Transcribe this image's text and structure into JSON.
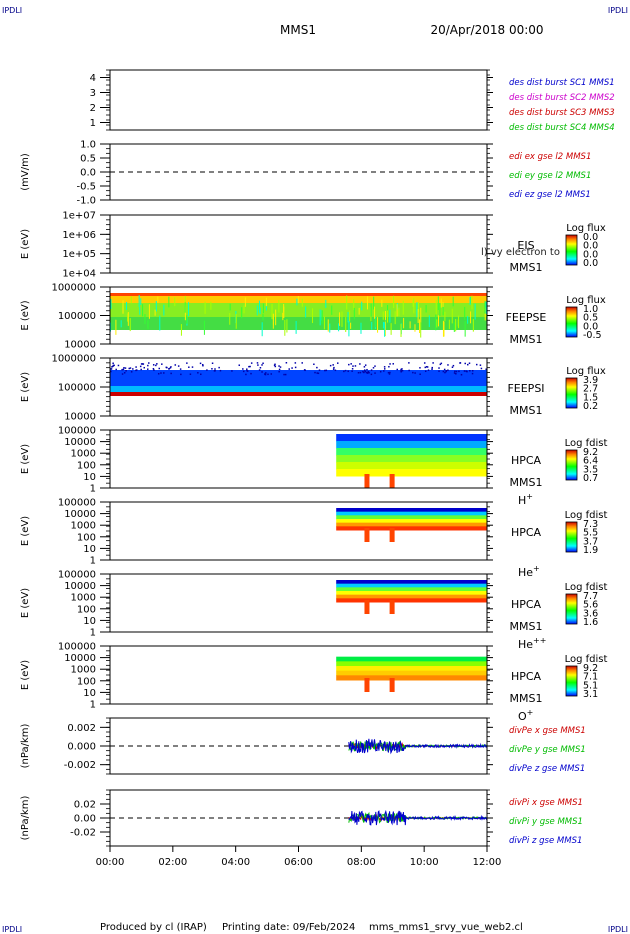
{
  "header": {
    "corner_label": "IPDLI",
    "spacecraft": "MMS1",
    "date": "20/Apr/2018 00:00"
  },
  "footer": {
    "produced_by": "Produced by cl (IRAP)",
    "printing_date": "Printing date: 09/Feb/2024",
    "filename": "mms_mms1_srvy_vue_web2.cl"
  },
  "overlay_text": "l) vy electron to",
  "time_axis": {
    "ticks": [
      "00:00",
      "02:00",
      "04:00",
      "06:00",
      "08:00",
      "10:00",
      "12:00"
    ],
    "range_hours": [
      0,
      12
    ]
  },
  "colors": {
    "blue": "#0000cc",
    "magenta": "#cc00cc",
    "red": "#cc0000",
    "green": "#00bb00",
    "black": "#000000"
  },
  "chart_data": [
    {
      "type": "line",
      "id": "des-burst",
      "ylabel": "",
      "ylim": [
        0.5,
        4.5
      ],
      "yticks": [
        "4",
        "3",
        "2",
        "1"
      ],
      "legend": [
        {
          "label": "des dist burst SC1 MMS1",
          "color": "#0000cc"
        },
        {
          "label": "des dist burst SC2 MMS2",
          "color": "#cc00cc"
        },
        {
          "label": "des dist burst SC3 MMS3",
          "color": "#cc0000"
        },
        {
          "label": "des dist burst SC4 MMS4",
          "color": "#00bb00"
        }
      ]
    },
    {
      "type": "line",
      "id": "edi",
      "ylabel": "(mV/m)",
      "ylim": [
        -1.0,
        1.0
      ],
      "yticks": [
        "1.0",
        "0.5",
        "0.0",
        "-0.5",
        "-1.0"
      ],
      "legend": [
        {
          "label": "edi ex gse l2 MMS1",
          "color": "#cc0000"
        },
        {
          "label": "edi ey gse l2 MMS1",
          "color": "#00bb00"
        },
        {
          "label": "edi ez gse l2 MMS1",
          "color": "#0000cc"
        }
      ]
    },
    {
      "type": "heatmap",
      "id": "eis",
      "ylabel": "E (eV)",
      "yticks": [
        "1e+07",
        "1e+06",
        "1e+05",
        "1e+04"
      ],
      "instrument": "EIS",
      "spacecraft": "MMS1",
      "colorbar_title": "Log flux",
      "colorbar_ticks": [
        "0.0",
        "0.0",
        "0.0",
        "0.0"
      ],
      "time_start_h": null
    },
    {
      "type": "heatmap",
      "id": "feepse",
      "ylabel": "E (eV)",
      "yticks": [
        "1000000",
        "100000",
        "10000"
      ],
      "instrument": "FEEPSE",
      "spacecraft": "MMS1",
      "colorbar_title": "Log flux",
      "colorbar_ticks": [
        "1.0",
        "0.5",
        "0.0",
        "-0.5"
      ],
      "time_start_h": 0
    },
    {
      "type": "heatmap",
      "id": "feepsi",
      "ylabel": "E (eV)",
      "yticks": [
        "1000000",
        "100000",
        "10000"
      ],
      "instrument": "FEEPSI",
      "spacecraft": "MMS1",
      "colorbar_title": "Log flux",
      "colorbar_ticks": [
        "3.9",
        "2.7",
        "1.5",
        "0.2"
      ],
      "time_start_h": 0
    },
    {
      "type": "heatmap",
      "id": "hpca-h",
      "ylabel": "E (eV)",
      "yticks": [
        "100000",
        "10000",
        "1000",
        "100",
        "10",
        "1"
      ],
      "instrument": "HPCA",
      "spacecraft": "MMS1",
      "species": "H",
      "species_sup": "+",
      "colorbar_title": "Log fdist",
      "colorbar_ticks": [
        "9.2",
        "6.4",
        "3.5",
        "0.7"
      ],
      "time_start_h": 7.2
    },
    {
      "type": "heatmap",
      "id": "hpca-he1",
      "ylabel": "E (eV)",
      "yticks": [
        "100000",
        "10000",
        "1000",
        "100",
        "10",
        "1"
      ],
      "instrument": "HPCA",
      "spacecraft": "",
      "species": "He",
      "species_sup": "+",
      "colorbar_title": "Log fdist",
      "colorbar_ticks": [
        "7.3",
        "5.5",
        "3.7",
        "1.9"
      ],
      "time_start_h": 7.2
    },
    {
      "type": "heatmap",
      "id": "hpca-he2",
      "ylabel": "E (eV)",
      "yticks": [
        "100000",
        "10000",
        "1000",
        "100",
        "10",
        "1"
      ],
      "instrument": "HPCA",
      "spacecraft": "MMS1",
      "species": "He",
      "species_sup": "++",
      "colorbar_title": "Log fdist",
      "colorbar_ticks": [
        "7.7",
        "5.6",
        "3.6",
        "1.6"
      ],
      "time_start_h": 7.2
    },
    {
      "type": "heatmap",
      "id": "hpca-o",
      "ylabel": "E (eV)",
      "yticks": [
        "100000",
        "10000",
        "1000",
        "100",
        "10",
        "1"
      ],
      "instrument": "HPCA",
      "spacecraft": "MMS1",
      "species": "O",
      "species_sup": "+",
      "colorbar_title": "Log fdist",
      "colorbar_ticks": [
        "9.2",
        "7.1",
        "5.1",
        "3.1"
      ],
      "time_start_h": 7.2
    },
    {
      "type": "line",
      "id": "divpe",
      "ylabel": "(nPa/km)",
      "ylim": [
        -0.003,
        0.003
      ],
      "yticks": [
        "0.002",
        "0.000",
        "-0.002"
      ],
      "legend": [
        {
          "label": "divPe x gse MMS1",
          "color": "#cc0000"
        },
        {
          "label": "divPe y gse MMS1",
          "color": "#00bb00"
        },
        {
          "label": "divPe z gse MMS1",
          "color": "#0000cc"
        }
      ],
      "active_from_h": 7.6
    },
    {
      "type": "line",
      "id": "divpi",
      "ylabel": "(nPa/km)",
      "ylim": [
        -0.04,
        0.04
      ],
      "yticks": [
        "0.02",
        "0.00",
        "-0.02"
      ],
      "legend": [
        {
          "label": "divPi x gse MMS1",
          "color": "#cc0000"
        },
        {
          "label": "divPi y gse MMS1",
          "color": "#00bb00"
        },
        {
          "label": "divPi z gse MMS1",
          "color": "#0000cc"
        }
      ],
      "active_from_h": 7.6
    }
  ]
}
